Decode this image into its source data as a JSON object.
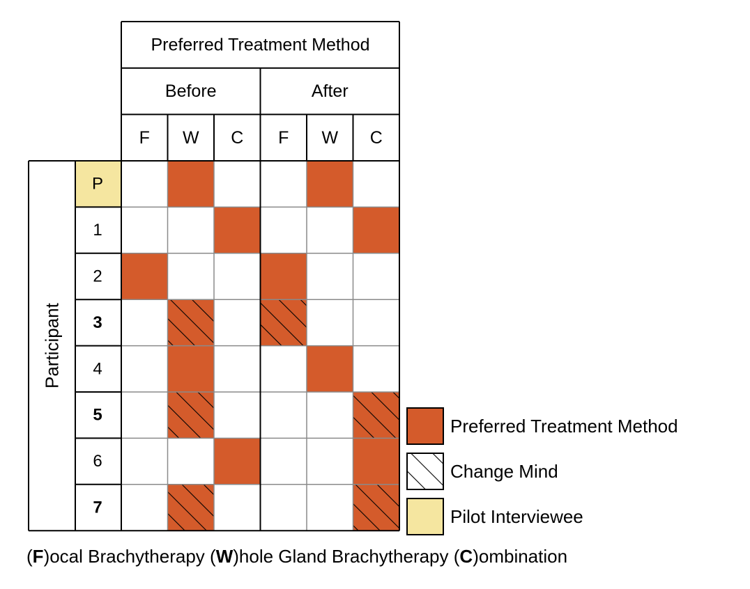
{
  "colors": {
    "preferred": "#d45b2b",
    "pilot": "#f5e6a0",
    "grid_dark": "#000000",
    "grid_light": "#8a8a8a"
  },
  "chart_data": {
    "type": "table",
    "title": "Preferred Treatment Method",
    "groups": [
      "Before",
      "After"
    ],
    "columns": [
      "F",
      "W",
      "C"
    ],
    "row_axis_label": "Participant",
    "rows": [
      {
        "label": "P",
        "pilot": true,
        "bold": false,
        "before": "W",
        "after": "W",
        "changed": false
      },
      {
        "label": "1",
        "pilot": false,
        "bold": false,
        "before": "C",
        "after": "C",
        "changed": false
      },
      {
        "label": "2",
        "pilot": false,
        "bold": false,
        "before": "F",
        "after": "F",
        "changed": false
      },
      {
        "label": "3",
        "pilot": false,
        "bold": true,
        "before": "W",
        "after": "F",
        "changed": true
      },
      {
        "label": "4",
        "pilot": false,
        "bold": false,
        "before": "W",
        "after": "W",
        "changed": false
      },
      {
        "label": "5",
        "pilot": false,
        "bold": true,
        "before": "W",
        "after": "C",
        "changed": true
      },
      {
        "label": "6",
        "pilot": false,
        "bold": false,
        "before": "C",
        "after": "C",
        "changed": false
      },
      {
        "label": "7",
        "pilot": false,
        "bold": true,
        "before": "W",
        "after": "C",
        "changed": true
      }
    ],
    "legend": [
      {
        "key": "preferred",
        "label": "Preferred Treatment Method"
      },
      {
        "key": "change",
        "label": "Change Mind"
      },
      {
        "key": "pilot",
        "label": "Pilot Interviewee"
      }
    ],
    "footnote": [
      {
        "bold": "F",
        "rest": "ocal Brachytherapy"
      },
      {
        "bold": "W",
        "rest": "hole Gland Brachytherapy"
      },
      {
        "bold": "C",
        "rest": "ombination"
      }
    ]
  }
}
